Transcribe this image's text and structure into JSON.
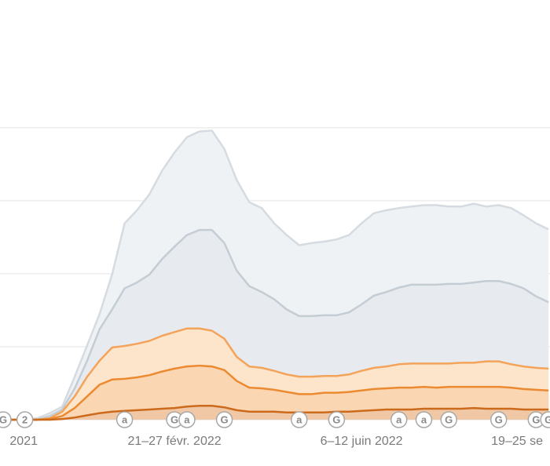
{
  "chart_data": {
    "type": "area",
    "categories": [
      "2021",
      null,
      null,
      null,
      null,
      null,
      null,
      null,
      null,
      null,
      null,
      null,
      null,
      null,
      null,
      "21–27 févr. 2022",
      null,
      null,
      null,
      null,
      null,
      null,
      null,
      null,
      null,
      null,
      null,
      null,
      null,
      null,
      "6–12 juin 2022",
      null,
      null,
      null,
      null,
      null,
      null,
      null,
      null,
      null,
      null,
      null,
      null,
      null,
      null,
      "19–25 se"
    ],
    "annotations": [
      null,
      "G",
      null,
      "2",
      null,
      null,
      null,
      null,
      null,
      null,
      null,
      "a",
      null,
      null,
      null,
      "G",
      "a",
      null,
      null,
      "G",
      null,
      null,
      null,
      null,
      null,
      "a",
      null,
      null,
      "G",
      null,
      null,
      null,
      null,
      "a",
      null,
      "a",
      null,
      "G",
      null,
      null,
      null,
      "G",
      null,
      null,
      "G",
      "G"
    ],
    "ylim": [
      0,
      5.75
    ],
    "gridlines": [
      0,
      1,
      2,
      3,
      4
    ],
    "series": [
      {
        "color": "#d5dbe1",
        "fill": "#eef2f5",
        "values": [
          0,
          0,
          0,
          0,
          0.02,
          0.09,
          0.18,
          0.59,
          1.02,
          1.45,
          1.99,
          2.69,
          2.87,
          3.09,
          3.41,
          3.66,
          3.87,
          3.95,
          3.96,
          3.71,
          3.28,
          2.98,
          2.9,
          2.69,
          2.53,
          2.39,
          2.42,
          2.44,
          2.47,
          2.53,
          2.69,
          2.83,
          2.87,
          2.9,
          2.92,
          2.94,
          2.94,
          2.92,
          2.92,
          2.96,
          2.92,
          2.94,
          2.9,
          2.8,
          2.69,
          2.61
        ]
      },
      {
        "color": "#c4ccd4",
        "fill": "#e7ebf0",
        "values": [
          0,
          0,
          0,
          0,
          0,
          0.05,
          0.14,
          0.43,
          0.81,
          1.24,
          1.51,
          1.8,
          1.88,
          1.99,
          2.2,
          2.37,
          2.53,
          2.6,
          2.6,
          2.42,
          2.04,
          1.83,
          1.75,
          1.65,
          1.51,
          1.42,
          1.42,
          1.43,
          1.43,
          1.47,
          1.58,
          1.7,
          1.75,
          1.81,
          1.85,
          1.85,
          1.85,
          1.86,
          1.86,
          1.88,
          1.9,
          1.9,
          1.86,
          1.8,
          1.69,
          1.61
        ]
      },
      {
        "color": "#f4a35a",
        "fill": "#fde5cb",
        "values": [
          0,
          0,
          0,
          0,
          0,
          0.02,
          0.11,
          0.32,
          0.59,
          0.81,
          0.99,
          1.01,
          1.04,
          1.08,
          1.15,
          1.2,
          1.25,
          1.25,
          1.22,
          1.11,
          0.86,
          0.73,
          0.71,
          0.67,
          0.62,
          0.59,
          0.59,
          0.6,
          0.6,
          0.62,
          0.67,
          0.71,
          0.73,
          0.76,
          0.77,
          0.77,
          0.77,
          0.77,
          0.78,
          0.78,
          0.8,
          0.8,
          0.76,
          0.73,
          0.71,
          0.7
        ]
      },
      {
        "color": "#ec8a32",
        "fill": "#fbd6b3",
        "values": [
          0,
          0,
          0,
          0,
          0,
          0.01,
          0.05,
          0.16,
          0.32,
          0.48,
          0.55,
          0.56,
          0.58,
          0.61,
          0.66,
          0.7,
          0.73,
          0.74,
          0.73,
          0.68,
          0.53,
          0.44,
          0.43,
          0.41,
          0.38,
          0.35,
          0.35,
          0.37,
          0.37,
          0.38,
          0.4,
          0.42,
          0.43,
          0.44,
          0.44,
          0.45,
          0.44,
          0.45,
          0.45,
          0.45,
          0.45,
          0.45,
          0.44,
          0.42,
          0.41,
          0.4
        ]
      },
      {
        "color": "#cc6a1c",
        "fill": "#f0c8a6",
        "values": [
          0,
          0,
          0,
          0,
          0,
          0,
          0.01,
          0.03,
          0.06,
          0.09,
          0.11,
          0.12,
          0.13,
          0.14,
          0.15,
          0.16,
          0.18,
          0.19,
          0.19,
          0.17,
          0.13,
          0.11,
          0.11,
          0.11,
          0.1,
          0.1,
          0.1,
          0.1,
          0.11,
          0.11,
          0.12,
          0.13,
          0.14,
          0.14,
          0.14,
          0.15,
          0.15,
          0.15,
          0.15,
          0.16,
          0.15,
          0.15,
          0.15,
          0.14,
          0.14,
          0.14
        ]
      }
    ]
  }
}
